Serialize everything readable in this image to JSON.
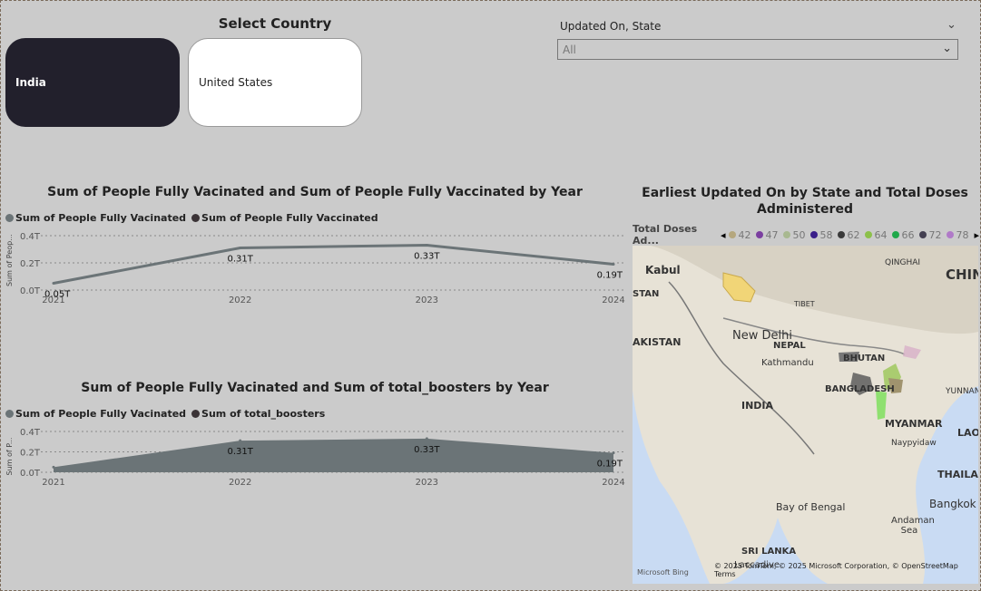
{
  "slicer": {
    "title": "Select Country",
    "options": [
      {
        "label": "India",
        "selected": true
      },
      {
        "label": "United States",
        "selected": false
      }
    ]
  },
  "filter": {
    "label": "Updated On, State",
    "value": "All"
  },
  "line_chart": {
    "title": "Sum of People Fully Vacinated and Sum of People Fully Vaccinated by Year",
    "legend": [
      "Sum of People Fully Vacinated",
      "Sum of People Fully Vaccinated"
    ],
    "ylabel": "Sum of Peop...",
    "yticks": [
      "0.4T",
      "0.2T",
      "0.0T"
    ],
    "xticks": [
      "2021",
      "2022",
      "2023",
      "2024"
    ],
    "labels": [
      "0.05T",
      "0.31T",
      "0.33T",
      "0.19T"
    ]
  },
  "area_chart": {
    "title": "Sum of People Fully Vacinated and Sum of total_boosters by Year",
    "legend": [
      "Sum of People Fully Vacinated",
      "Sum of total_boosters"
    ],
    "ylabel": "Sum of P...",
    "yticks": [
      "0.4T",
      "0.2T",
      "0.0T"
    ],
    "xticks": [
      "2021",
      "2022",
      "2023",
      "2024"
    ],
    "labels": [
      "0.31T",
      "0.33T",
      "0.19T"
    ]
  },
  "chart_data": [
    {
      "type": "line",
      "title": "Sum of People Fully Vacinated and Sum of People Fully Vaccinated by Year",
      "x": [
        "2021",
        "2022",
        "2023",
        "2024"
      ],
      "series": [
        {
          "name": "Sum of People Fully Vacinated",
          "values": [
            0.05,
            0.31,
            0.33,
            0.19
          ],
          "color": "#6b7477"
        }
      ],
      "ylim": [
        0,
        0.4
      ],
      "unit": "T",
      "grid": true,
      "legend": "top-left"
    },
    {
      "type": "area",
      "title": "Sum of People Fully Vacinated and Sum of total_boosters by Year",
      "x": [
        "2021",
        "2022",
        "2023",
        "2024"
      ],
      "series": [
        {
          "name": "Sum of People Fully Vacinated",
          "values": [
            0.05,
            0.31,
            0.33,
            0.19
          ],
          "color": "#6b7477"
        }
      ],
      "ylim": [
        0,
        0.4
      ],
      "unit": "T",
      "grid": true,
      "legend": "top-left"
    }
  ],
  "map": {
    "title": "Earliest Updated On by State and Total Doses Administered",
    "legend_label": "Total Doses Ad...",
    "legend_items": [
      {
        "label": "42",
        "color": "#b5a77e"
      },
      {
        "label": "47",
        "color": "#7b3fa0"
      },
      {
        "label": "50",
        "color": "#a8b890"
      },
      {
        "label": "58",
        "color": "#3b1f8a"
      },
      {
        "label": "62",
        "color": "#3a3a3a"
      },
      {
        "label": "64",
        "color": "#8cc04a"
      },
      {
        "label": "66",
        "color": "#1fa84a"
      },
      {
        "label": "72",
        "color": "#444052"
      },
      {
        "label": "78",
        "color": "#b07ac8"
      }
    ],
    "places": [
      "Kabul",
      "QINGHAI",
      "CHIN",
      "STAN",
      "TIBET",
      "New Delhi",
      "AKISTAN",
      "NEPAL",
      "Kathmandu",
      "BHUTAN",
      "BANGLADESH",
      "YUNNAN",
      "INDIA",
      "MYANMAR",
      "LAO",
      "Naypyidaw",
      "THAILA",
      "Bangkok",
      "Bay of Bengal",
      "Andaman Sea",
      "SRI LANKA",
      "Laccadive"
    ],
    "attribution": "© 2025 TomTom, © 2025 Microsoft Corporation, © OpenStreetMap  Terms",
    "brand": "Microsoft Bing"
  }
}
